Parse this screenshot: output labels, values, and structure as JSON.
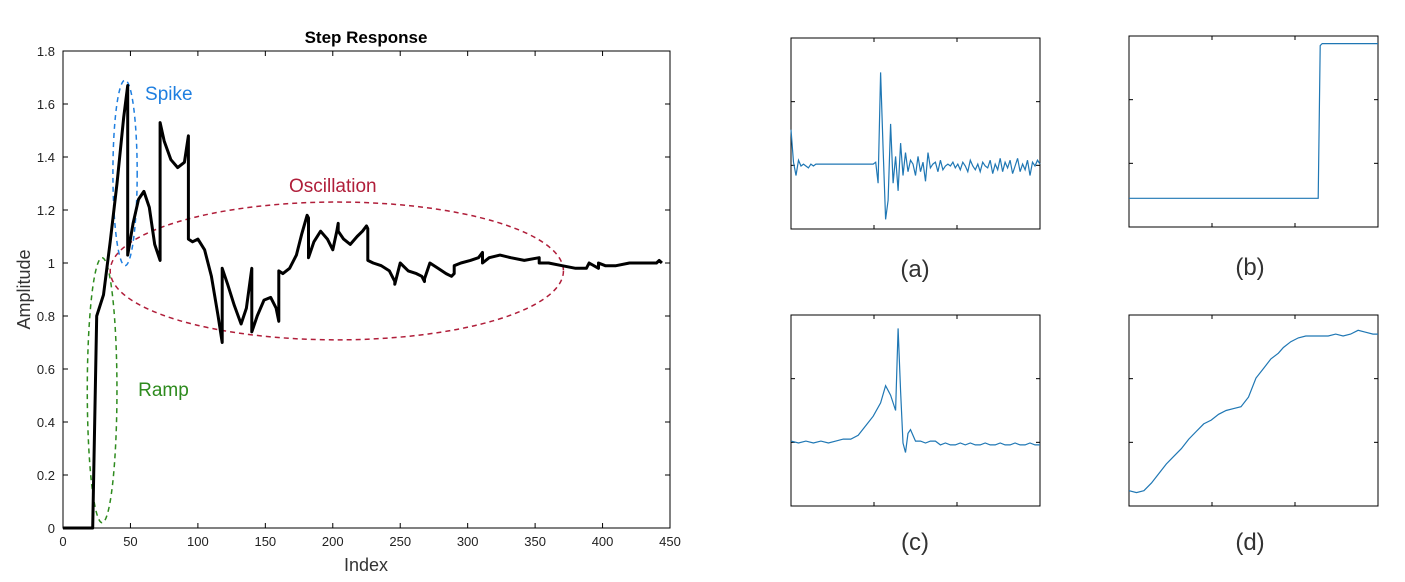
{
  "chart_data": [
    {
      "type": "line",
      "title": "Step Response",
      "xlabel": "Index",
      "ylabel": "Amplitude",
      "xlim": [
        0,
        450
      ],
      "ylim": [
        0,
        1.8
      ],
      "xticks": [
        0,
        50,
        100,
        150,
        200,
        250,
        300,
        350,
        400,
        450
      ],
      "yticks": [
        0,
        0.2,
        0.4,
        0.6,
        0.8,
        1,
        1.2,
        1.4,
        1.6,
        1.8
      ],
      "ytick_labels": [
        "0",
        "0.2",
        "0.4",
        "0.6",
        "0.8",
        "1",
        "1.2",
        "1.4",
        "1.6",
        "1.8"
      ],
      "grid": false,
      "series_color": "#000000",
      "series": [
        {
          "x": [
            0,
            22,
            25,
            25,
            30,
            35,
            40,
            45,
            48,
            48,
            52,
            56,
            60,
            64,
            68,
            72,
            72,
            75,
            80,
            85,
            90,
            93,
            93,
            96,
            100,
            105,
            110,
            115,
            118,
            118,
            122,
            127,
            132,
            136,
            140,
            140,
            144,
            149,
            154,
            158,
            160,
            160,
            163,
            168,
            173,
            177,
            181,
            182,
            182,
            186,
            191,
            196,
            200,
            203,
            204,
            204,
            208,
            213,
            218,
            222,
            225,
            226,
            226,
            230,
            236,
            242,
            246,
            246,
            250,
            256,
            262,
            266,
            268,
            268,
            272,
            278,
            284,
            288,
            290,
            290,
            295,
            302,
            308,
            311,
            311,
            316,
            324,
            332,
            342,
            353,
            353,
            360,
            370,
            380,
            388,
            390,
            397,
            397,
            402,
            410,
            420,
            428,
            435,
            440,
            442,
            444
          ],
          "y": [
            0,
            0,
            0.8,
            0.8,
            0.88,
            1.08,
            1.3,
            1.55,
            1.67,
            1.03,
            1.15,
            1.24,
            1.27,
            1.21,
            1.07,
            1.01,
            1.53,
            1.46,
            1.39,
            1.36,
            1.38,
            1.48,
            1.09,
            1.08,
            1.09,
            1.05,
            0.95,
            0.8,
            0.7,
            0.98,
            0.92,
            0.84,
            0.77,
            0.83,
            0.98,
            0.74,
            0.8,
            0.86,
            0.87,
            0.83,
            0.78,
            0.97,
            0.96,
            0.98,
            1.03,
            1.11,
            1.18,
            1.17,
            1.02,
            1.08,
            1.12,
            1.09,
            1.05,
            1.12,
            1.15,
            1.12,
            1.09,
            1.07,
            1.1,
            1.12,
            1.14,
            1.13,
            1.01,
            1.0,
            0.99,
            0.97,
            0.93,
            0.92,
            1.0,
            0.97,
            0.96,
            0.95,
            0.93,
            0.94,
            1.0,
            0.98,
            0.96,
            0.95,
            0.96,
            0.99,
            1.0,
            1.01,
            1.02,
            1.04,
            1.0,
            1.02,
            1.03,
            1.02,
            1.01,
            1.02,
            1.0,
            1.0,
            0.99,
            0.98,
            0.98,
            1.0,
            0.98,
            1.0,
            0.99,
            0.99,
            1.0,
            1.0,
            1.0,
            1.0,
            1.01,
            1.0
          ]
        }
      ],
      "annotations": [
        {
          "text": "Spike",
          "color": "#1f7fe0",
          "cx": 46,
          "cy": 1.34,
          "rx": 9,
          "ry": 0.35
        },
        {
          "text": "Oscillation",
          "color": "#b01e3a",
          "cx": 203,
          "cy": 0.97,
          "rx": 168,
          "ry": 0.26
        },
        {
          "text": "Ramp",
          "color": "#2e8b1e",
          "cx": 29,
          "cy": 0.52,
          "rx": 11,
          "ry": 0.5
        }
      ]
    },
    {
      "type": "line",
      "label": "(a)",
      "color": "#1f77b4",
      "xlim": [
        0,
        100
      ],
      "ylim": [
        0,
        1
      ],
      "x": [
        0,
        1,
        2,
        3,
        4,
        5,
        6,
        7,
        8,
        9,
        10,
        11,
        12,
        13,
        14,
        15,
        16,
        17,
        18,
        19,
        20,
        21,
        22,
        23,
        24,
        25,
        26,
        27,
        28,
        29,
        30,
        31,
        32,
        33,
        34,
        35,
        36,
        37,
        38,
        39,
        40,
        41,
        42,
        43,
        44,
        45,
        46,
        47,
        48,
        49,
        50,
        51,
        52,
        53,
        54,
        55,
        56,
        57,
        58,
        59,
        60,
        61,
        62,
        63,
        64,
        65,
        66,
        67,
        68,
        69,
        70,
        71,
        72,
        73,
        74,
        75,
        76,
        77,
        78,
        79,
        80,
        81,
        82,
        83,
        84,
        85,
        86,
        87,
        88,
        89,
        90,
        91,
        92,
        93,
        94,
        95,
        96,
        97,
        98,
        99,
        100
      ],
      "y": [
        0.52,
        0.35,
        0.28,
        0.36,
        0.33,
        0.34,
        0.33,
        0.32,
        0.34,
        0.33,
        0.34,
        0.34,
        0.34,
        0.34,
        0.34,
        0.34,
        0.34,
        0.34,
        0.34,
        0.34,
        0.34,
        0.34,
        0.34,
        0.34,
        0.34,
        0.34,
        0.34,
        0.34,
        0.34,
        0.34,
        0.34,
        0.34,
        0.34,
        0.34,
        0.35,
        0.24,
        0.82,
        0.42,
        0.05,
        0.15,
        0.55,
        0.24,
        0.38,
        0.2,
        0.45,
        0.28,
        0.4,
        0.3,
        0.36,
        0.34,
        0.28,
        0.38,
        0.3,
        0.35,
        0.25,
        0.4,
        0.32,
        0.34,
        0.35,
        0.3,
        0.36,
        0.31,
        0.33,
        0.34,
        0.33,
        0.35,
        0.32,
        0.34,
        0.31,
        0.35,
        0.33,
        0.3,
        0.36,
        0.33,
        0.31,
        0.34,
        0.3,
        0.35,
        0.33,
        0.32,
        0.36,
        0.29,
        0.34,
        0.31,
        0.37,
        0.3,
        0.35,
        0.32,
        0.36,
        0.29,
        0.33,
        0.37,
        0.3,
        0.34,
        0.31,
        0.36,
        0.28,
        0.35,
        0.33,
        0.36,
        0.34
      ]
    },
    {
      "type": "line",
      "label": "(b)",
      "color": "#1f77b4",
      "xlim": [
        0,
        100
      ],
      "ylim": [
        0,
        1
      ],
      "x": [
        0,
        20,
        40,
        60,
        76,
        76.8,
        77.6,
        80,
        90,
        100
      ],
      "y": [
        0.15,
        0.15,
        0.15,
        0.15,
        0.15,
        0.95,
        0.96,
        0.96,
        0.96,
        0.96
      ]
    },
    {
      "type": "line",
      "label": "(c)",
      "color": "#1f77b4",
      "xlim": [
        0,
        100
      ],
      "ylim": [
        0,
        1
      ],
      "x": [
        0,
        3,
        6,
        9,
        12,
        15,
        18,
        21,
        24,
        27,
        30,
        33,
        36,
        38,
        40,
        42,
        43,
        44,
        45,
        46,
        47,
        48,
        50,
        52,
        54,
        56,
        58,
        60,
        62,
        64,
        66,
        68,
        70,
        72,
        74,
        76,
        78,
        80,
        82,
        84,
        86,
        88,
        90,
        92,
        94,
        96,
        98,
        100
      ],
      "y": [
        0.34,
        0.33,
        0.34,
        0.33,
        0.34,
        0.33,
        0.34,
        0.35,
        0.35,
        0.37,
        0.42,
        0.47,
        0.54,
        0.63,
        0.58,
        0.5,
        0.93,
        0.6,
        0.33,
        0.28,
        0.38,
        0.4,
        0.34,
        0.34,
        0.33,
        0.34,
        0.34,
        0.32,
        0.33,
        0.32,
        0.32,
        0.33,
        0.32,
        0.33,
        0.32,
        0.32,
        0.33,
        0.32,
        0.32,
        0.33,
        0.32,
        0.32,
        0.33,
        0.32,
        0.32,
        0.33,
        0.32,
        0.32
      ]
    },
    {
      "type": "line",
      "label": "(d)",
      "color": "#1f77b4",
      "xlim": [
        0,
        100
      ],
      "ylim": [
        0,
        1
      ],
      "x": [
        0,
        3,
        6,
        9,
        12,
        15,
        18,
        21,
        24,
        27,
        30,
        33,
        36,
        39,
        42,
        45,
        48,
        51,
        54,
        57,
        60,
        62,
        65,
        68,
        71,
        74,
        77,
        80,
        83,
        86,
        89,
        92,
        95,
        98,
        100
      ],
      "y": [
        0.08,
        0.07,
        0.08,
        0.12,
        0.17,
        0.22,
        0.26,
        0.3,
        0.35,
        0.39,
        0.43,
        0.45,
        0.48,
        0.5,
        0.51,
        0.52,
        0.57,
        0.67,
        0.72,
        0.77,
        0.8,
        0.83,
        0.86,
        0.88,
        0.89,
        0.89,
        0.89,
        0.89,
        0.9,
        0.89,
        0.9,
        0.92,
        0.91,
        0.9,
        0.9
      ]
    }
  ]
}
